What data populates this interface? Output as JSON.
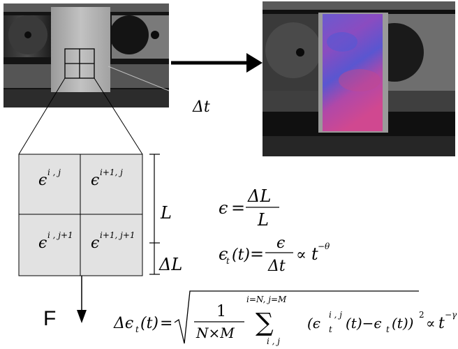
{
  "left_photo": {
    "description": "grayscale specimen clamped in grips, overlaid 2x2 grid"
  },
  "right_photo": {
    "description": "specimen with colour strain map (blue to magenta)"
  },
  "time_step_label": "Δt",
  "cells": [
    {
      "base": "ϵ",
      "sup": "i , j"
    },
    {
      "base": "ϵ",
      "sup": "i+1, j"
    },
    {
      "base": "ϵ",
      "sup": "i , j+1"
    },
    {
      "base": "ϵ",
      "sup": "i+1, j+1"
    }
  ],
  "length_label": "L",
  "delta_length_label": "ΔL",
  "force_label": "F",
  "equations": {
    "strain": {
      "lhs": "ϵ",
      "eq": "=",
      "num": "ΔL",
      "den": "L"
    },
    "rate": {
      "lhs_base": "ϵ",
      "lhs_sub": "t",
      "lhs_arg": "(t)",
      "eq": "=",
      "num": "ϵ",
      "den": "Δt",
      "prop": "∝",
      "power_base": "t",
      "power_exp": "−θ"
    },
    "fluct": {
      "lhs": "Δϵ",
      "lhs_sub": "t",
      "lhs_arg": "(t)",
      "eq": "=",
      "frac_num": "1",
      "frac_den": "N×M",
      "sum_top": "i=N, j=M",
      "sum_sym": "∑",
      "sum_bottom": "i , j",
      "term_open": "(ϵ",
      "term_sub": "t",
      "term_sup": "i , j",
      "term_mid": "(t)−ϵ",
      "term_sub2": "t",
      "term_close": "(t))",
      "sq": "2",
      "prop": "∝",
      "power_base": "t",
      "power_exp": "−γ"
    }
  },
  "colors": {
    "grid_fill": "#e4e4e4",
    "photo_dark": "#1a1a1a",
    "specimen_gray": "#b4b4b4",
    "strain_blue": "#5a52c8",
    "strain_magenta": "#c0489a"
  }
}
